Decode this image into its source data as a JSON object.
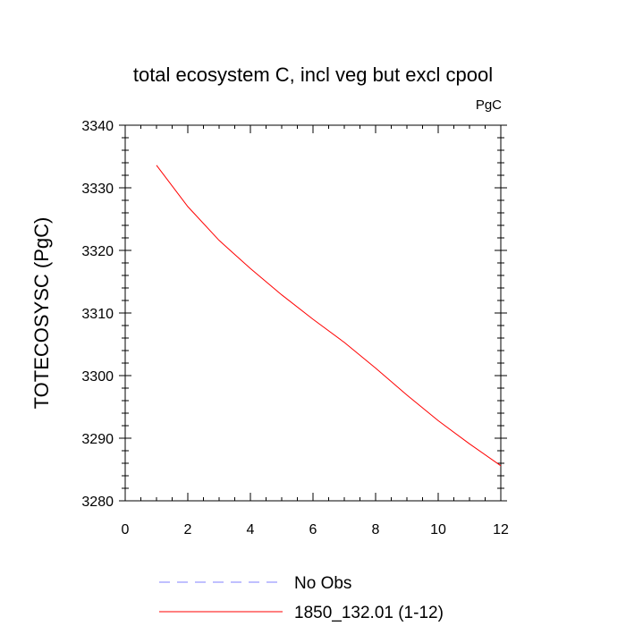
{
  "chart_data": {
    "type": "line",
    "title": "total ecosystem C, incl veg but excl cpool",
    "units_label": "PgC",
    "ylabel": "TOTECOSYSC  (PgC)",
    "xlabel": "",
    "xlim": [
      0,
      12
    ],
    "ylim": [
      3280,
      3340
    ],
    "x_ticks": [
      0,
      2,
      4,
      6,
      8,
      10,
      12
    ],
    "y_ticks": [
      3280,
      3290,
      3300,
      3310,
      3320,
      3330,
      3340
    ],
    "grid": false,
    "legend_position": "bottom",
    "series": [
      {
        "name": "No Obs",
        "color": "#8080ff",
        "dash": "dashed",
        "x": [],
        "y": []
      },
      {
        "name": "1850_132.01 (1-12)",
        "color": "#ff0000",
        "dash": "solid",
        "x": [
          1,
          2,
          3,
          4,
          5,
          6,
          7,
          8,
          9,
          10,
          11,
          12
        ],
        "y": [
          3333.6,
          3327.0,
          3321.6,
          3317.1,
          3312.9,
          3309.0,
          3305.3,
          3301.2,
          3296.9,
          3292.8,
          3289.1,
          3285.6
        ]
      }
    ]
  }
}
